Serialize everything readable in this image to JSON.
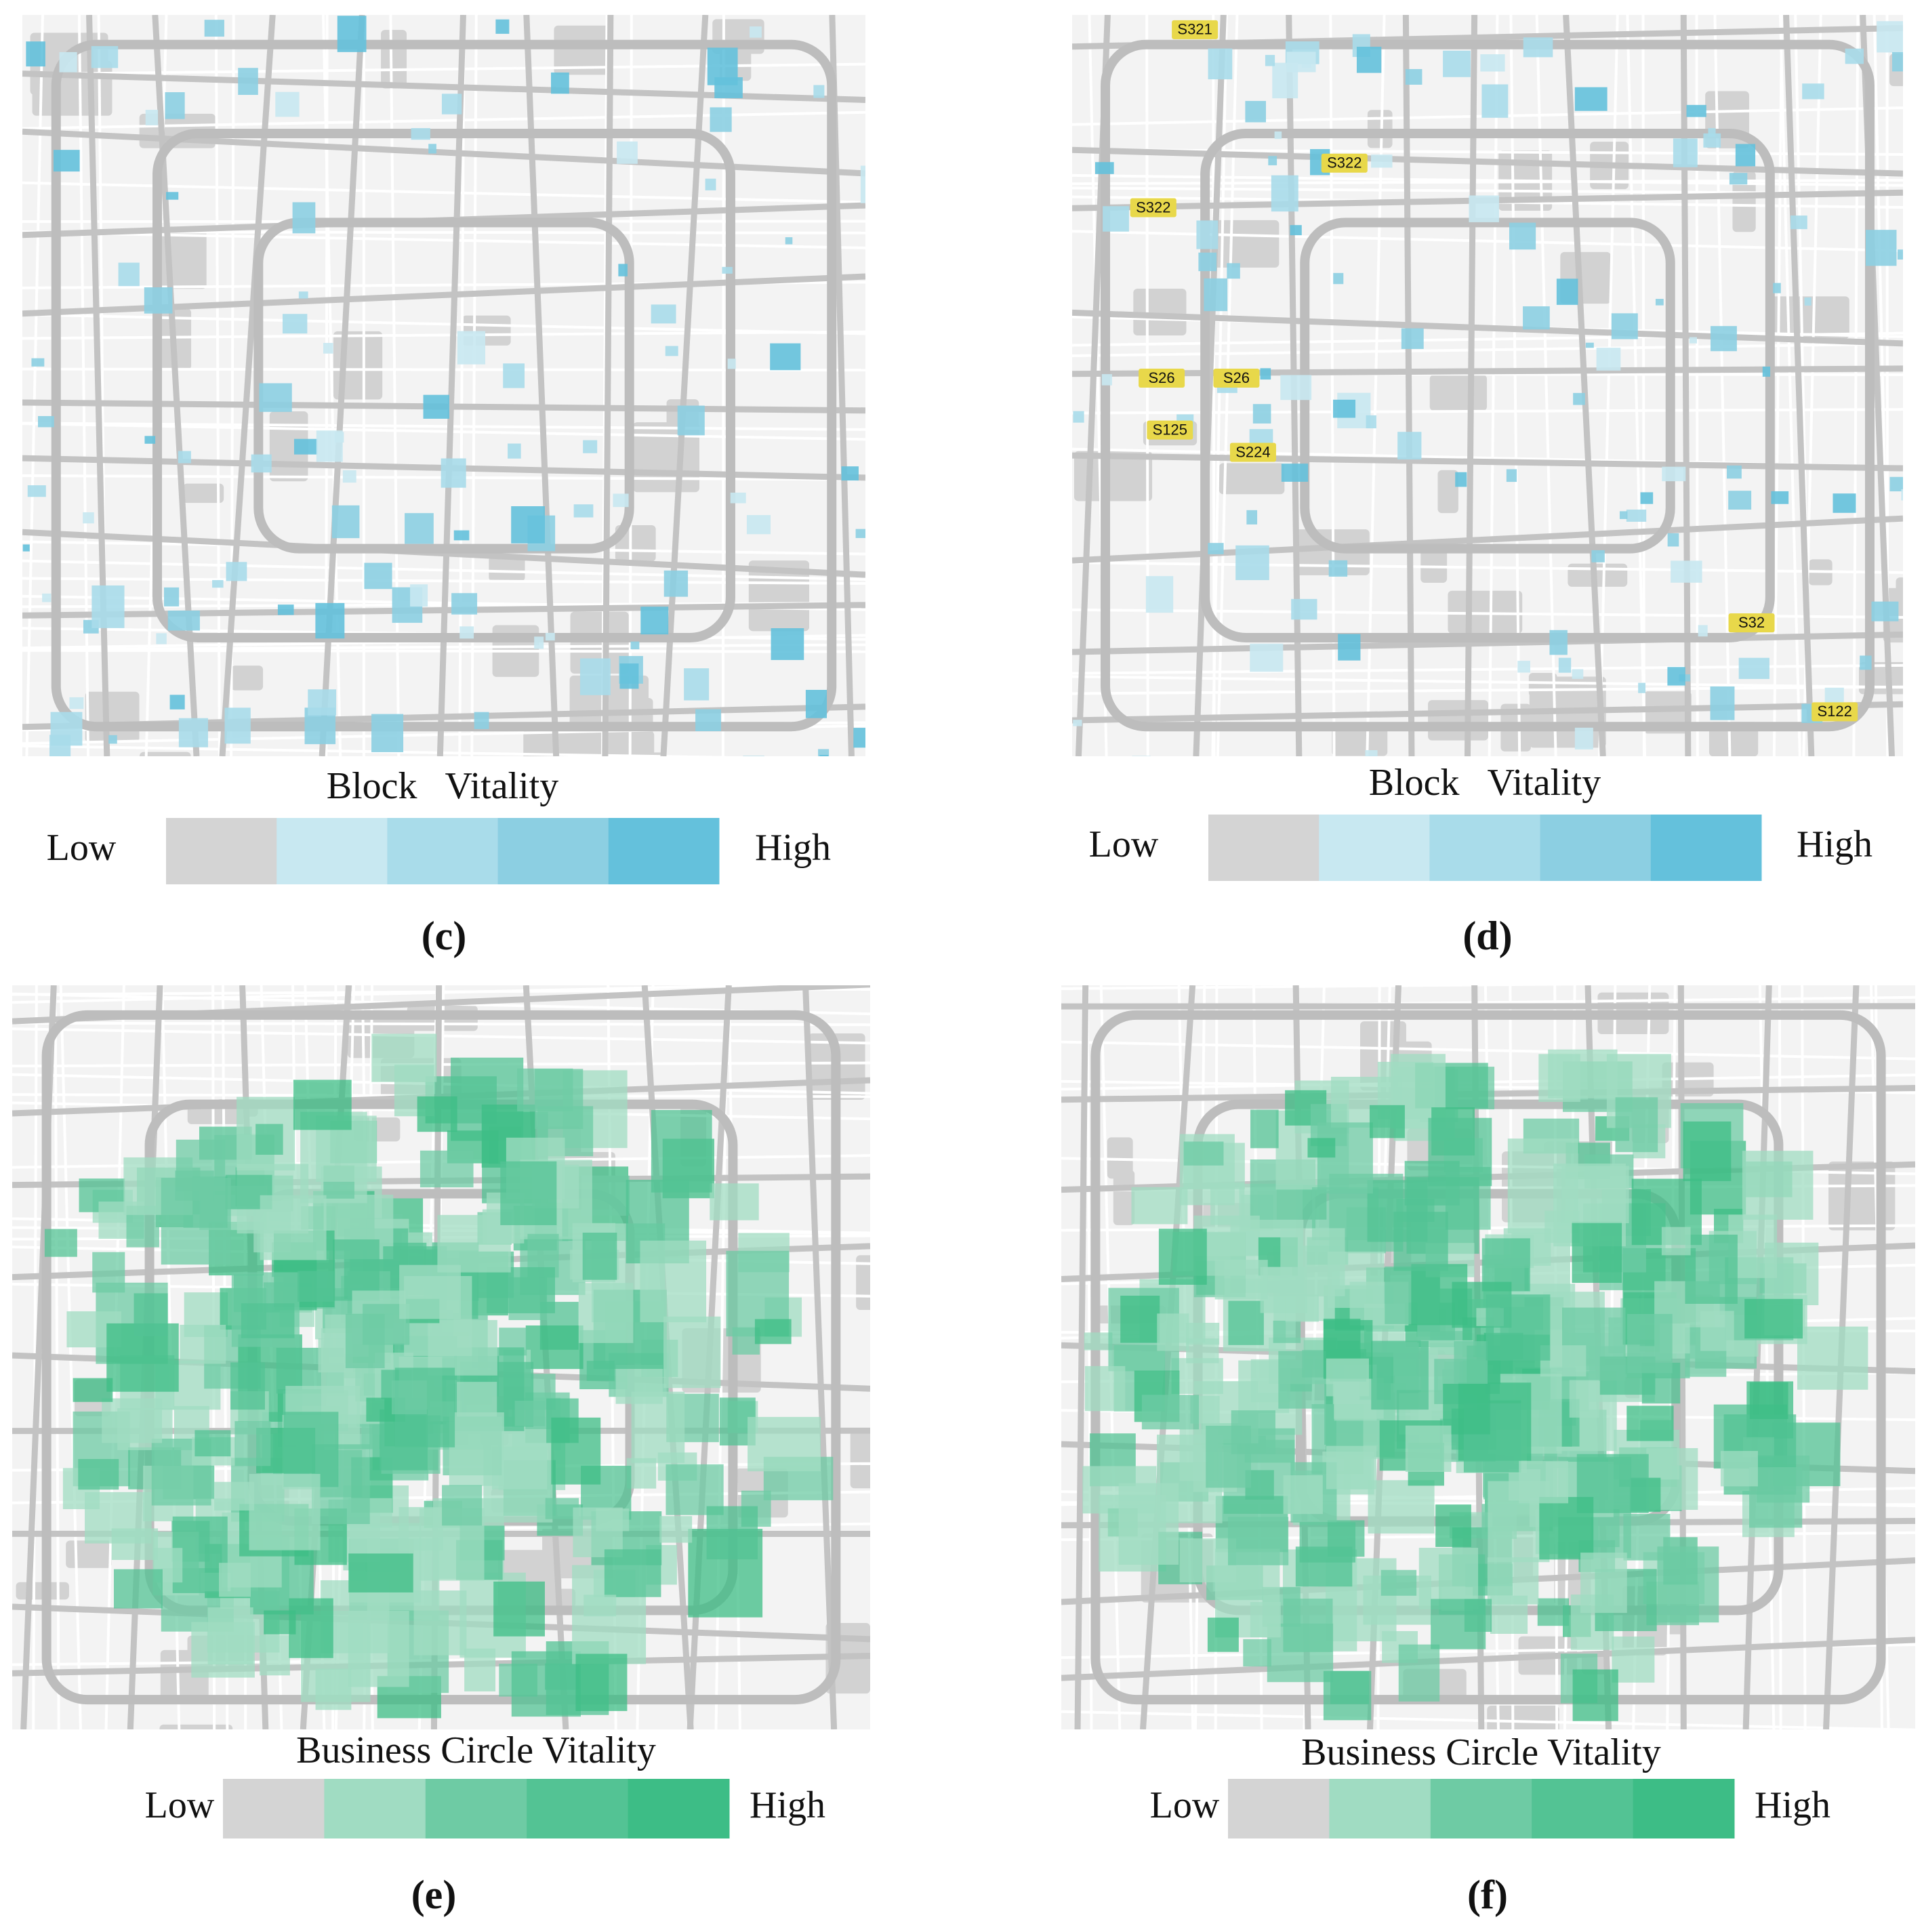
{
  "panels": [
    {
      "label": "(c)",
      "legend": {
        "title": "Block   Vitality",
        "low": "Low",
        "high": "High",
        "colors": [
          "#d4d4d4",
          "#c8e8f1",
          "#a9dcea",
          "#8ccfe2",
          "#64c1dc"
        ]
      },
      "shields": []
    },
    {
      "label": "(d)",
      "legend": {
        "title": "Block   Vitality",
        "low": "Low",
        "high": "High",
        "colors": [
          "#d4d4d4",
          "#c8e8f1",
          "#a9dcea",
          "#8ccfe2",
          "#64c1dc"
        ]
      },
      "shields": [
        "S321",
        "S322",
        "S322",
        "S26",
        "S26",
        "S125",
        "S224",
        "S32",
        "S122"
      ]
    },
    {
      "label": "(e)",
      "legend": {
        "title": "Business Circle Vitality",
        "low": "Low",
        "high": "High",
        "colors": [
          "#d4d4d4",
          "#a0dcc2",
          "#6ecba4",
          "#53c394",
          "#3dbd86"
        ]
      },
      "shields": []
    },
    {
      "label": "(f)",
      "legend": {
        "title": "Business Circle Vitality",
        "low": "Low",
        "high": "High",
        "colors": [
          "#d4d4d4",
          "#a0dcc2",
          "#6ecba4",
          "#53c394",
          "#3dbd86"
        ]
      },
      "shields": []
    }
  ]
}
